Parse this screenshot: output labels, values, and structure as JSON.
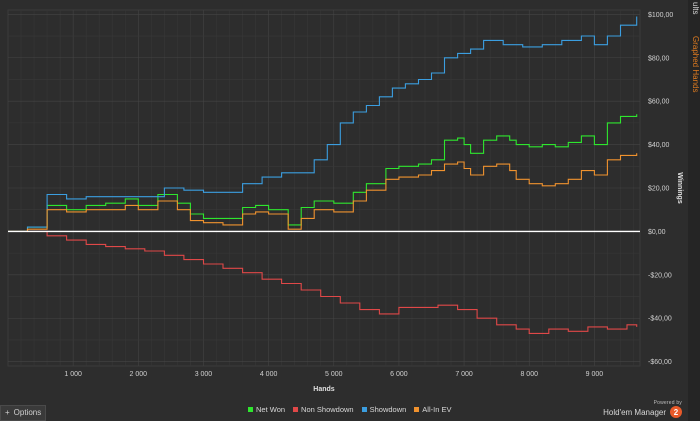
{
  "window": {
    "side_tab_1": "ults",
    "side_tab_2": "Graphed Hands",
    "options_label": "Options",
    "powered_by": "Powered by",
    "brand": "Hold'em Manager",
    "brand_badge": "2"
  },
  "colors": {
    "background": "#2d2d2d",
    "grid": "#3d3d3d",
    "net_won": "#2ee62e",
    "non_showdown": "#e04848",
    "showdown": "#3b9ee0",
    "all_in_ev": "#f0922e",
    "zero_line": "#ffffff"
  },
  "chart_data": {
    "type": "line",
    "xlabel": "Hands",
    "ylabel": "Winnings",
    "xlim": [
      0,
      9700
    ],
    "ylim": [
      -62,
      102
    ],
    "x_ticks": [
      1000,
      2000,
      3000,
      4000,
      5000,
      6000,
      7000,
      8000,
      9000
    ],
    "x_tick_labels": [
      "1 000",
      "2 000",
      "3 000",
      "4 000",
      "5 000",
      "6 000",
      "7 000",
      "8 000",
      "9 000"
    ],
    "y_ticks": [
      100,
      80,
      60,
      40,
      20,
      0,
      -20,
      -40,
      -60
    ],
    "y_tick_labels": [
      "$100,00",
      "$80,00",
      "$60,00",
      "$40,00",
      "$20,00",
      "$0,00",
      "-$20,00",
      "-$40,00",
      "-$60,00"
    ],
    "legend_position": "bottom",
    "grid": true,
    "series": [
      {
        "name": "Net Won",
        "color": "#2ee62e",
        "x": [
          0,
          300,
          600,
          900,
          1200,
          1500,
          1800,
          2000,
          2300,
          2600,
          2800,
          3000,
          3300,
          3600,
          3800,
          4000,
          4300,
          4500,
          4700,
          5000,
          5300,
          5500,
          5800,
          6000,
          6300,
          6500,
          6700,
          6900,
          7000,
          7100,
          7300,
          7500,
          7700,
          7800,
          8000,
          8200,
          8400,
          8600,
          8800,
          9000,
          9200,
          9400,
          9650
        ],
        "y": [
          0,
          2,
          12,
          10,
          12,
          13,
          15,
          12,
          17,
          13,
          8,
          6,
          6,
          11,
          12,
          10,
          3,
          11,
          14,
          13,
          18,
          22,
          29,
          30,
          31,
          33,
          42,
          43,
          40,
          36,
          42,
          44,
          42,
          40,
          39,
          40,
          39,
          41,
          44,
          40,
          50,
          53,
          54
        ]
      },
      {
        "name": "Non Showdown",
        "color": "#e04848",
        "x": [
          0,
          300,
          600,
          900,
          1200,
          1500,
          1800,
          2100,
          2400,
          2700,
          3000,
          3300,
          3600,
          3900,
          4200,
          4500,
          4800,
          5100,
          5400,
          5700,
          6000,
          6300,
          6600,
          6900,
          7200,
          7500,
          7800,
          8000,
          8300,
          8600,
          8900,
          9200,
          9500,
          9650
        ],
        "y": [
          0,
          0,
          -2,
          -4,
          -6,
          -7,
          -8,
          -9,
          -11,
          -13,
          -15,
          -17,
          -19,
          -22,
          -24,
          -27,
          -30,
          -33,
          -36,
          -38,
          -35,
          -35,
          -34,
          -36,
          -40,
          -43,
          -45,
          -47,
          -45,
          -46,
          -44,
          -45,
          -43,
          -44
        ]
      },
      {
        "name": "Showdown",
        "color": "#3b9ee0",
        "x": [
          0,
          300,
          600,
          900,
          1200,
          1500,
          1800,
          2100,
          2400,
          2700,
          3000,
          3300,
          3600,
          3900,
          4200,
          4500,
          4700,
          4900,
          5100,
          5300,
          5500,
          5700,
          5900,
          6100,
          6300,
          6500,
          6700,
          6900,
          7100,
          7300,
          7600,
          7900,
          8200,
          8500,
          8800,
          9000,
          9200,
          9400,
          9650
        ],
        "y": [
          0,
          2,
          17,
          15,
          16,
          16,
          16,
          16,
          20,
          19,
          18,
          18,
          22,
          25,
          27,
          27,
          33,
          40,
          50,
          55,
          58,
          62,
          66,
          68,
          70,
          73,
          80,
          82,
          84,
          88,
          86,
          85,
          86,
          88,
          90,
          86,
          90,
          95,
          99
        ]
      },
      {
        "name": "All-In EV",
        "color": "#f0922e",
        "x": [
          0,
          300,
          600,
          900,
          1200,
          1500,
          1800,
          2000,
          2300,
          2600,
          2800,
          3000,
          3300,
          3600,
          3800,
          4000,
          4300,
          4500,
          4700,
          5000,
          5300,
          5500,
          5800,
          6000,
          6300,
          6500,
          6700,
          6900,
          7000,
          7100,
          7300,
          7500,
          7700,
          7800,
          8000,
          8200,
          8400,
          8600,
          8800,
          9000,
          9200,
          9400,
          9650
        ],
        "y": [
          0,
          1,
          10,
          9,
          10,
          10,
          12,
          10,
          14,
          10,
          5,
          4,
          3,
          8,
          9,
          8,
          1,
          6,
          10,
          9,
          14,
          19,
          24,
          25,
          26,
          28,
          31,
          32,
          29,
          26,
          30,
          31,
          28,
          24,
          22,
          21,
          22,
          24,
          28,
          26,
          33,
          35,
          36
        ]
      }
    ]
  }
}
